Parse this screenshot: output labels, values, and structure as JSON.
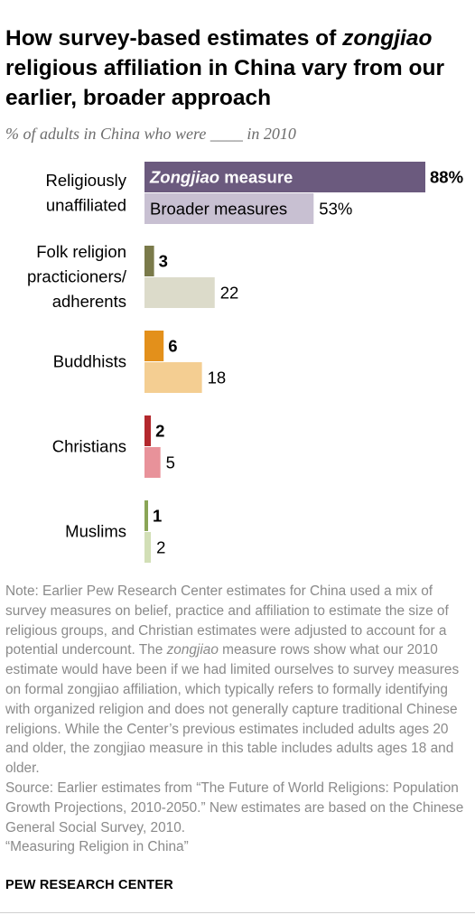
{
  "title": {
    "part1": "How survey-based estimates of ",
    "italic": "zongjiao",
    "part2": " religious affiliation in China vary from our earlier, broader approach"
  },
  "subtitle": "% of adults in China who were ____ in 2010",
  "chart_data": {
    "type": "bar",
    "orientation": "horizontal",
    "categories": [
      [
        "Religiously",
        "unaffiliated"
      ],
      [
        "Folk religion",
        "practicioners/",
        "adherents"
      ],
      [
        "Buddhists"
      ],
      [
        "Christians"
      ],
      [
        "Muslims"
      ]
    ],
    "series": [
      {
        "name": "Zongjiao measure",
        "values": [
          88,
          3,
          6,
          2,
          1
        ],
        "labels": [
          "88%",
          "3",
          "6",
          "2",
          "1"
        ],
        "colors": [
          "#6b5a7e",
          "#7a7a4a",
          "#e3901b",
          "#b3282d",
          "#8aa556"
        ]
      },
      {
        "name": "Broader measures",
        "values": [
          53,
          22,
          18,
          5,
          2
        ],
        "labels": [
          "53%",
          "22",
          "18",
          "5",
          "2"
        ],
        "colors": [
          "#c8c0d2",
          "#dcdbca",
          "#f4ce92",
          "#e8929a",
          "#d2dfb6"
        ]
      }
    ],
    "series_name_parts": {
      "zongjiao_italic": "Zongjiao",
      "zongjiao_rest": " measure"
    },
    "xlim": [
      0,
      100
    ],
    "grid": false,
    "legend": "none (series named inside the first pair of bars)"
  },
  "note": {
    "p1": "Note: Earlier Pew Research Center estimates for China used a mix of survey measures on belief, practice and affiliation to estimate the size of religious groups, and Christian estimates were adjusted to account for a potential undercount. The ",
    "p1_italic": "zongjiao",
    "p2": " measure rows show what our 2010 estimate would have been if we had limited ourselves to survey measures on formal zongjiao affiliation, which typically refers to formally identifying with organized religion and does not generally capture traditional Chinese religions. While the Center’s previous estimates included adults ages 20 and older, the zongjiao measure in this table includes adults ages 18 and older.",
    "source": "Source: Earlier estimates from “The Future of World Religions: Population Growth Projections, 2010-2050.” New estimates are based on the Chinese General Social Survey, 2010.",
    "report": "“Measuring Religion in China”"
  },
  "footer": "PEW RESEARCH CENTER"
}
